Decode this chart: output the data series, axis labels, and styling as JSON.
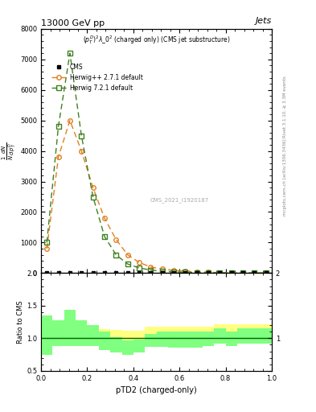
{
  "title": "13000 GeV pp",
  "title_right": "Jets",
  "subplot_title": "$(p_T^D)^2\\lambda\\_0^2$ (charged only) (CMS jet substructure)",
  "xlabel": "pTD2 (charged-only)",
  "right_label_top": "Rivet 3.1.10, ≥ 3.3M events",
  "right_label_bottom": "mcplots.cern.ch [arXiv:1306.3436]",
  "cms_label": "CMS_2021_I1920187",
  "xlim": [
    0,
    1
  ],
  "ylim_main": [
    0,
    8000
  ],
  "ylim_ratio": [
    0.5,
    2.0
  ],
  "x_data": [
    0.025,
    0.075,
    0.125,
    0.175,
    0.225,
    0.275,
    0.325,
    0.375,
    0.425,
    0.475,
    0.525,
    0.575,
    0.625,
    0.675,
    0.725,
    0.775,
    0.825,
    0.875,
    0.925,
    0.975
  ],
  "cms_y": [
    5,
    5,
    5,
    5,
    5,
    5,
    5,
    5,
    5,
    5,
    5,
    5,
    5,
    5,
    5,
    5,
    5,
    5,
    5,
    5
  ],
  "herwig_pp_y": [
    800,
    3800,
    5000,
    4000,
    2800,
    1800,
    1100,
    600,
    350,
    200,
    130,
    90,
    60,
    40,
    28,
    18,
    12,
    8,
    5,
    3
  ],
  "herwig7_y": [
    1000,
    4800,
    7200,
    4500,
    2500,
    1200,
    600,
    300,
    170,
    100,
    60,
    38,
    25,
    17,
    11,
    7,
    5,
    3,
    2,
    1
  ],
  "ratio_herwig_pp_lo": [
    0.95,
    0.98,
    0.98,
    0.98,
    0.98,
    0.98,
    0.97,
    0.96,
    0.95,
    1.02,
    1.02,
    1.02,
    1.02,
    1.02,
    1.02,
    1.05,
    1.05,
    1.05,
    1.05,
    1.05
  ],
  "ratio_herwig_pp_hi": [
    1.25,
    1.15,
    1.14,
    1.14,
    1.14,
    1.14,
    1.13,
    1.12,
    1.11,
    1.18,
    1.18,
    1.18,
    1.18,
    1.18,
    1.18,
    1.22,
    1.22,
    1.22,
    1.22,
    1.22
  ],
  "ratio_herwig7_lo": [
    0.75,
    0.88,
    0.88,
    0.88,
    0.88,
    0.82,
    0.78,
    0.75,
    0.78,
    0.87,
    0.87,
    0.85,
    0.85,
    0.85,
    0.88,
    0.92,
    0.88,
    0.92,
    0.92,
    0.92
  ],
  "ratio_herwig7_hi": [
    1.35,
    1.28,
    1.44,
    1.28,
    1.2,
    1.1,
    1.02,
    0.97,
    0.98,
    1.07,
    1.1,
    1.1,
    1.1,
    1.1,
    1.1,
    1.15,
    1.1,
    1.15,
    1.15,
    1.15
  ],
  "color_cms": "#000000",
  "color_herwig_pp": "#e08020",
  "color_herwig7": "#408020",
  "color_band_yellow": "#ffff80",
  "color_band_green": "#80ff80"
}
